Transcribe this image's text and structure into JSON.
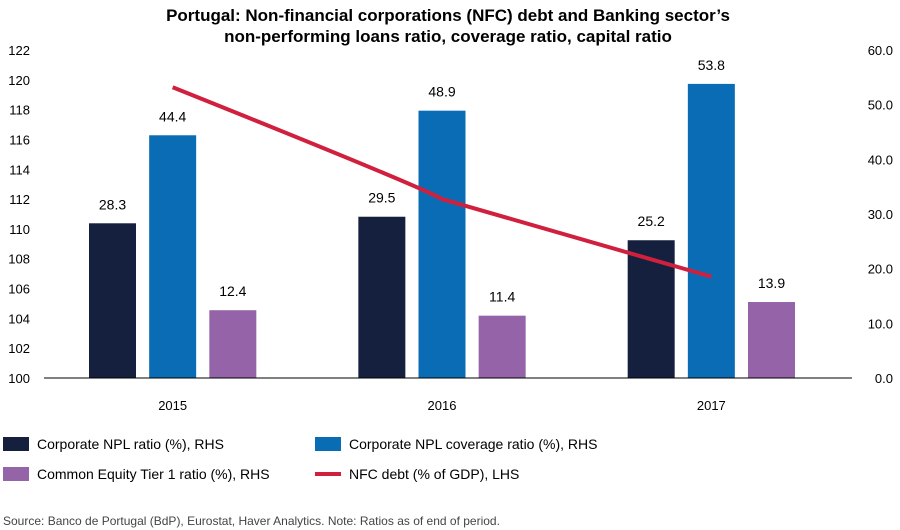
{
  "chart_data": {
    "type": "bar",
    "title_lines": [
      "Portugal: Non-financial corporations (NFC) debt and Banking sector’s",
      "non-performing loans ratio, coverage ratio, capital ratio"
    ],
    "categories": [
      "2015",
      "2016",
      "2017"
    ],
    "left_axis": {
      "ylim": [
        100,
        122
      ],
      "ticks": [
        "100",
        "102",
        "104",
        "106",
        "108",
        "110",
        "112",
        "114",
        "116",
        "118",
        "120",
        "122"
      ]
    },
    "right_axis": {
      "ylim": [
        0,
        60
      ],
      "ticks": [
        "0.0",
        "10.0",
        "20.0",
        "30.0",
        "40.0",
        "50.0",
        "60.0"
      ]
    },
    "series": [
      {
        "name": "Corporate NPL ratio (%), RHS",
        "kind": "bar",
        "axis": "right",
        "color": "#14203d",
        "values": [
          28.3,
          29.5,
          25.2
        ],
        "labels": [
          "28.3",
          "29.5",
          "25.2"
        ]
      },
      {
        "name": "Corporate NPL coverage ratio (%), RHS",
        "kind": "bar",
        "axis": "right",
        "color": "#0a6cb4",
        "values": [
          44.4,
          48.9,
          53.8
        ],
        "labels": [
          "44.4",
          "48.9",
          "53.8"
        ]
      },
      {
        "name": "Common Equity Tier 1 ratio (%), RHS",
        "kind": "bar",
        "axis": "right",
        "color": "#9463a8",
        "values": [
          12.4,
          11.4,
          13.9
        ],
        "labels": [
          "12.4",
          "11.4",
          "13.9"
        ]
      },
      {
        "name": "NFC debt (% of GDP), LHS",
        "kind": "line",
        "axis": "left",
        "color": "#d0203e",
        "values": [
          119.5,
          112.0,
          106.8
        ]
      }
    ],
    "source": "Source: Banco de Portugal (BdP), Eurostat, Haver Analytics. Note: Ratios as of end of period."
  }
}
